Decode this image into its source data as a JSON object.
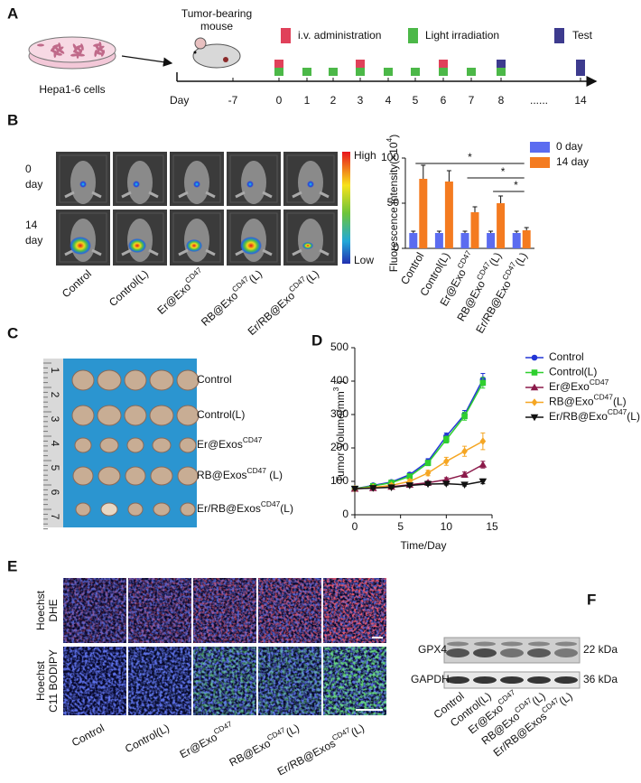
{
  "panel_labels": [
    "A",
    "B",
    "C",
    "D",
    "E",
    "F"
  ],
  "A": {
    "cells": "Hepa1-6 cells",
    "mouse": [
      "Tumor-bearing",
      "mouse"
    ],
    "legend": [
      "i.v. administration",
      "Light irradiation",
      "Test"
    ],
    "day_label": "Day",
    "days": [
      "-7",
      "0",
      "1",
      "2",
      "3",
      "4",
      "5",
      "6",
      "7",
      "8",
      "......",
      "14"
    ]
  },
  "B": {
    "rows": [
      [
        "0",
        "day"
      ],
      [
        "14",
        "day"
      ]
    ],
    "scale": [
      "High",
      "Low"
    ],
    "groups": [
      [
        {
          "text": "Control"
        }
      ],
      [
        {
          "text": "Control(L)"
        }
      ],
      [
        {
          "text": "Er@Exo"
        },
        {
          "text": "CD47",
          "sup": true
        }
      ],
      [
        {
          "text": "RB@Exo"
        },
        {
          "text": "CD47",
          "sup": true
        },
        {
          "text": "(L)"
        }
      ],
      [
        {
          "text": "Er/RB@Exo"
        },
        {
          "text": "CD47",
          "sup": true
        },
        {
          "text": "(L)"
        }
      ]
    ]
  },
  "C": {
    "ruler": [
      "1",
      "2",
      "3",
      "4",
      "5",
      "6",
      "7"
    ],
    "rows": [
      [
        {
          "text": "Control"
        }
      ],
      [
        {
          "text": "Control(L)"
        }
      ],
      [
        {
          "text": "Er@Exos"
        },
        {
          "text": "CD47",
          "sup": true
        }
      ],
      [
        {
          "text": "RB@Exos"
        },
        {
          "text": "CD47",
          "sup": true
        },
        {
          "text": " (L)"
        }
      ],
      [
        {
          "text": "Er/RB@Exos"
        },
        {
          "text": "CD47",
          "sup": true
        },
        {
          "text": "(L)"
        }
      ]
    ]
  },
  "E": {
    "rows": [
      [
        {
          "text": "Hoechst",
          "color": "#2a48d8"
        },
        {
          "text": "DHE",
          "color": "#e02525"
        }
      ],
      [
        {
          "text": "Hoechst",
          "color": "#2a48d8"
        },
        {
          "text": "C11 BODIPY",
          "color": "#1a9e3e"
        }
      ]
    ],
    "groups": [
      [
        {
          "text": "Control"
        }
      ],
      [
        {
          "text": "Control(L)"
        }
      ],
      [
        {
          "text": "Er@Exo"
        },
        {
          "text": "CD47",
          "sup": true
        }
      ],
      [
        {
          "text": "RB@Exo"
        },
        {
          "text": "CD47",
          "sup": true
        },
        {
          "text": "(L)"
        }
      ],
      [
        {
          "text": "Er/RB@Exos"
        },
        {
          "text": "CD47",
          "sup": true
        },
        {
          "text": "(L)"
        }
      ]
    ]
  },
  "F": {
    "bands": [
      "GPX4",
      "GAPDH"
    ],
    "sizes": [
      "22 kDa",
      "36 kDa"
    ],
    "groups": [
      [
        {
          "text": "Control"
        }
      ],
      [
        {
          "text": "Control(L)"
        }
      ],
      [
        {
          "text": "Er@Exo"
        },
        {
          "text": "CD47",
          "sup": true
        }
      ],
      [
        {
          "text": "RB@Exo"
        },
        {
          "text": "CD47",
          "sup": true
        },
        {
          "text": "(L)"
        }
      ],
      [
        {
          "text": "Er/RB@Exos"
        },
        {
          "text": "CD47",
          "sup": true
        },
        {
          "text": "(L)"
        }
      ]
    ]
  },
  "chart_data": [
    {
      "type": "bar",
      "y_label": [
        {
          "text": "Fluorescence intensity(×10"
        },
        {
          "text": "4",
          "sup": true
        },
        {
          "text": ")"
        }
      ],
      "categories": [
        [
          {
            "text": "Control"
          }
        ],
        [
          {
            "text": "Control(L)"
          }
        ],
        [
          {
            "text": "Er@Exo"
          },
          {
            "text": "CD47",
            "sup": true
          }
        ],
        [
          {
            "text": "RB@Exo"
          },
          {
            "text": "CD47",
            "sup": true
          },
          {
            "text": "(L)"
          }
        ],
        [
          {
            "text": "Er/RB@Exo"
          },
          {
            "text": "CD47",
            "sup": true
          },
          {
            "text": "(L)"
          }
        ]
      ],
      "ylim": [
        0,
        100
      ],
      "yticks": [
        0,
        50,
        100
      ],
      "series": [
        {
          "name": "0 day",
          "color": "#5b6cf0",
          "values": [
            17,
            17,
            17,
            17,
            17
          ],
          "errors": [
            2,
            2,
            2,
            2,
            2
          ]
        },
        {
          "name": "14 day",
          "color": "#f47b20",
          "values": [
            77,
            74,
            40,
            50,
            20
          ],
          "errors": [
            15,
            12,
            6,
            8,
            3
          ]
        }
      ],
      "annotations": [
        "*",
        "*",
        "*"
      ]
    },
    {
      "type": "line",
      "x_label": "Time/Day",
      "y_label": [
        {
          "text": "Tumor Volume(mm"
        },
        {
          "text": "3",
          "sup": true
        },
        {
          "text": " )"
        }
      ],
      "x": [
        0,
        2,
        4,
        6,
        8,
        10,
        12,
        14
      ],
      "xlim": [
        0,
        15
      ],
      "xticks": [
        0,
        5,
        10,
        15
      ],
      "ylim": [
        0,
        500
      ],
      "yticks": [
        0,
        100,
        200,
        300,
        400,
        500
      ],
      "series": [
        {
          "name": [
            {
              "text": "Control"
            }
          ],
          "color": "#2336d6",
          "marker": "circle",
          "values": [
            78,
            88,
            98,
            120,
            160,
            235,
            300,
            405
          ],
          "errors": [
            3,
            4,
            5,
            6,
            8,
            10,
            12,
            18
          ]
        },
        {
          "name": [
            {
              "text": "Control(L)"
            }
          ],
          "color": "#2fcf2f",
          "marker": "square",
          "values": [
            78,
            86,
            96,
            115,
            155,
            225,
            295,
            395
          ],
          "errors": [
            3,
            4,
            5,
            6,
            8,
            10,
            12,
            16
          ]
        },
        {
          "name": [
            {
              "text": "Er@Exo"
            },
            {
              "text": "CD47",
              "sup": true
            }
          ],
          "color": "#8b1a4a",
          "marker": "triangle",
          "values": [
            78,
            80,
            84,
            90,
            96,
            105,
            120,
            150
          ],
          "errors": [
            3,
            3,
            4,
            4,
            5,
            6,
            8,
            10
          ]
        },
        {
          "name": [
            {
              "text": "RB@Exo"
            },
            {
              "text": "CD47",
              "sup": true
            },
            {
              "text": "(L)"
            }
          ],
          "color": "#f5a623",
          "marker": "diamond",
          "values": [
            78,
            82,
            88,
            100,
            125,
            160,
            190,
            220
          ],
          "errors": [
            3,
            4,
            5,
            6,
            8,
            12,
            15,
            25
          ]
        },
        {
          "name": [
            {
              "text": "Er/RB@Exo"
            },
            {
              "text": "CD47",
              "sup": true
            },
            {
              "text": "(L)"
            }
          ],
          "color": "#111111",
          "marker": "triangle-down",
          "values": [
            78,
            80,
            82,
            88,
            92,
            93,
            90,
            100
          ],
          "errors": [
            3,
            3,
            3,
            4,
            4,
            4,
            4,
            7
          ]
        }
      ]
    }
  ]
}
